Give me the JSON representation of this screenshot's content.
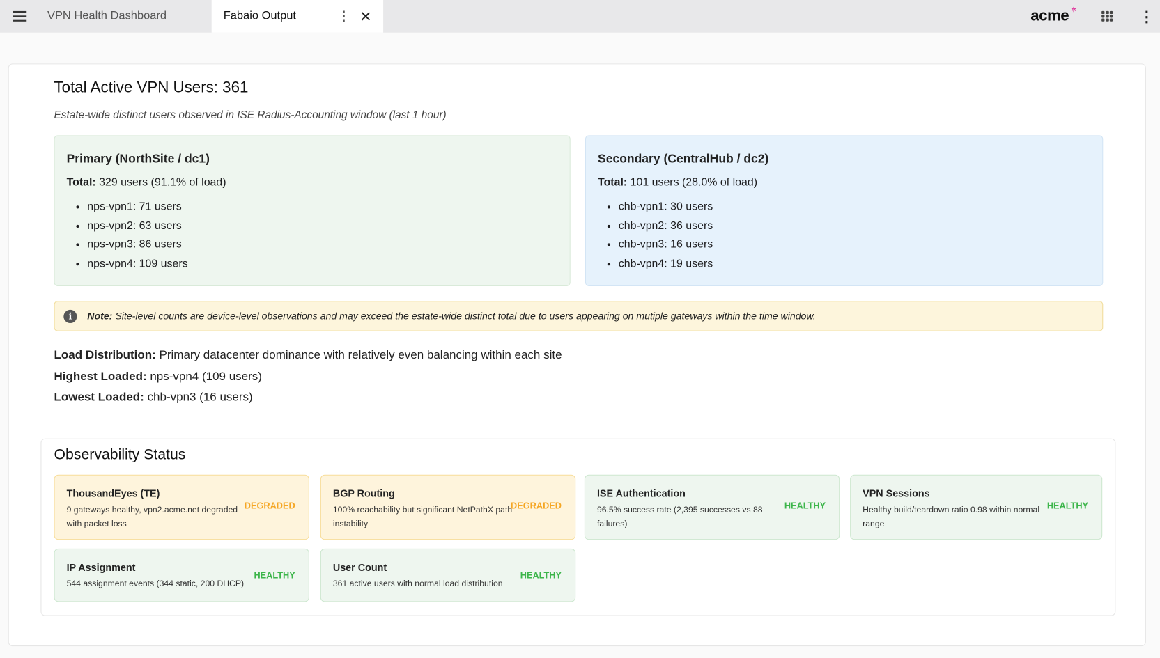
{
  "topbar": {
    "tabs": [
      {
        "label": "VPN Health Dashboard"
      },
      {
        "label": "Fabaio Output"
      }
    ],
    "logo": "acme",
    "icons": [
      "hamburger-menu-icon",
      "kebab-icon",
      "close-icon",
      "apps-grid-icon",
      "more-vert-icon"
    ]
  },
  "summary": {
    "title": "Total Active VPN Users: 361",
    "subtitle": "Estate-wide distinct users observed in ISE Radius-Accounting window (last 1 hour)"
  },
  "sites": [
    {
      "name": "Primary (NorthSite / dc1)",
      "total_label": "Total:",
      "total": "329 users (91.1% of load)",
      "color": "#eef6ef",
      "gateways": [
        "nps-vpn1: 71 users",
        "nps-vpn2: 63 users",
        "nps-vpn3: 86 users",
        "nps-vpn4: 109 users"
      ]
    },
    {
      "name": "Secondary (CentralHub / dc2)",
      "total_label": "Total:",
      "total": "101 users (28.0% of load)",
      "color": "#e6f2fc",
      "gateways": [
        "chb-vpn1: 30 users",
        "chb-vpn2: 36 users",
        "chb-vpn3: 16 users",
        "chb-vpn4: 19 users"
      ]
    }
  ],
  "note": {
    "label": "Note:",
    "text": "Site-level counts are device-level observations and may exceed the estate-wide distinct total due to users appearing on mutiple gateways within the time window."
  },
  "facts": [
    {
      "label": "Load Distribution:",
      "value": "Primary datacenter dominance with relatively even balancing within each site"
    },
    {
      "label": "Highest Loaded:",
      "value": "nps-vpn4 (109 users)"
    },
    {
      "label": "Lowest Loaded:",
      "value": "chb-vpn3 (16 users)"
    }
  ],
  "observability": {
    "title": "Observability Status",
    "colors": {
      "degraded": "#f5a623",
      "healthy": "#3cb54a"
    },
    "cards": [
      {
        "title": "ThousandEyes (TE)",
        "desc": "9 gateways healthy, vpn2.acme.net degraded with packet loss",
        "status": "DEGRADED"
      },
      {
        "title": "BGP Routing",
        "desc": "100% reachability but significant NetPathX path instability",
        "status": "DEGRADED"
      },
      {
        "title": "ISE Authentication",
        "desc": "96.5% success rate (2,395 successes vs 88 failures)",
        "status": "HEALTHY"
      },
      {
        "title": "VPN Sessions",
        "desc": "Healthy build/teardown ratio 0.98 within normal range",
        "status": "HEALTHY"
      },
      {
        "title": "IP Assignment",
        "desc": "544 assignment events (344 static, 200 DHCP)",
        "status": "HEALTHY"
      },
      {
        "title": "User Count",
        "desc": "361 active users with normal load distribution",
        "status": "HEALTHY"
      }
    ]
  }
}
